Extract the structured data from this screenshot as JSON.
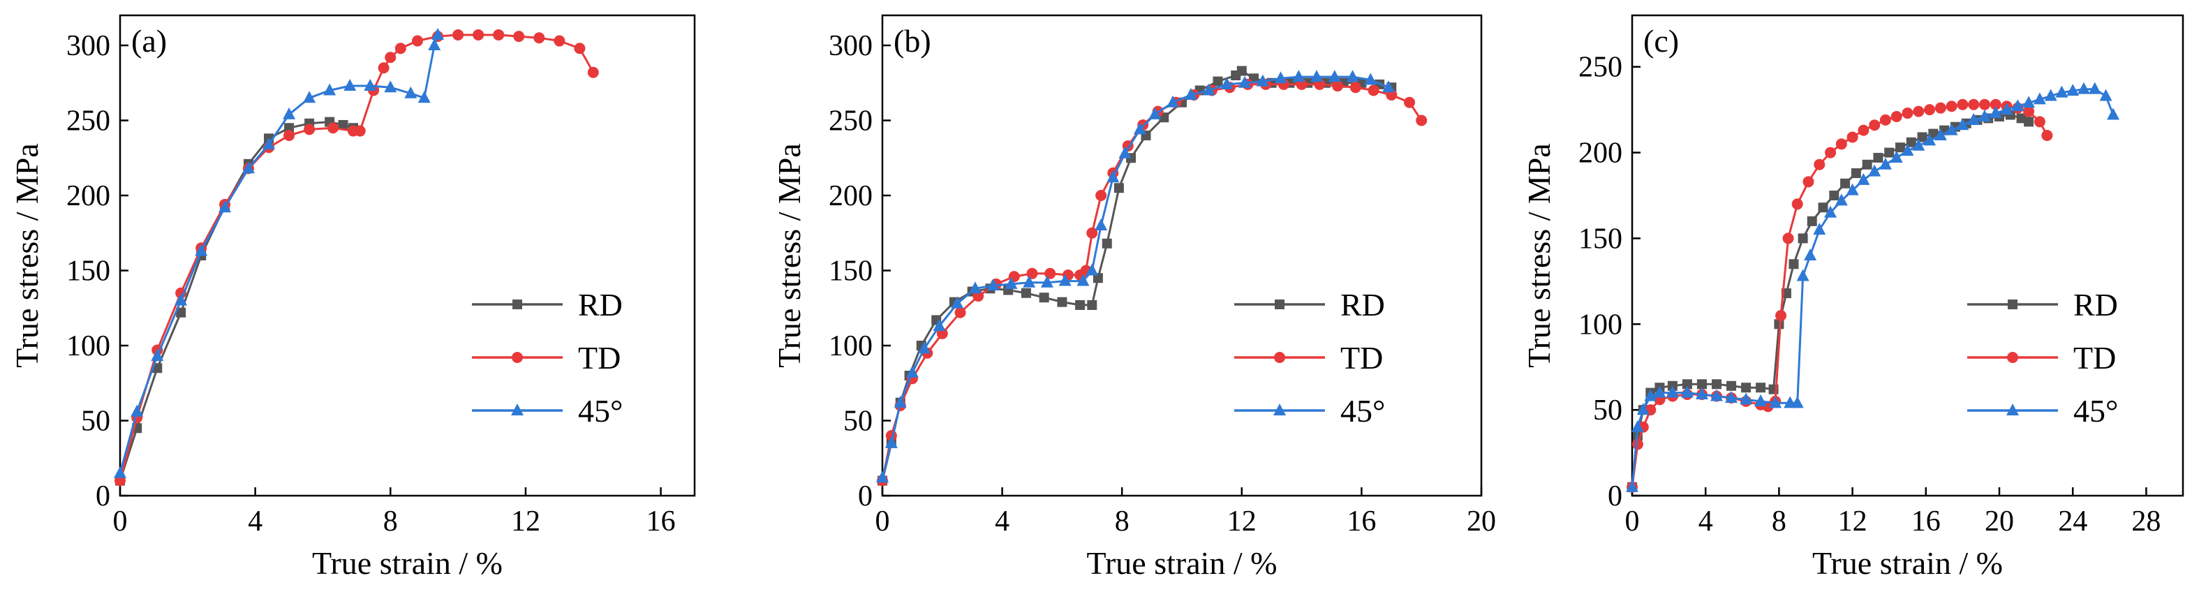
{
  "figure": {
    "description_none": ""
  },
  "chart_data": [
    {
      "type": "line",
      "panel_tag": "(a)",
      "xlabel": "True strain / %",
      "ylabel": "True stress / MPa",
      "xlim": [
        0,
        17
      ],
      "ylim": [
        0,
        320
      ],
      "xticks": [
        0,
        4,
        8,
        12,
        16
      ],
      "yticks": [
        0,
        50,
        100,
        150,
        200,
        250,
        300
      ],
      "legend_position": "lower-right",
      "series": [
        {
          "name": "RD",
          "color": "#555555",
          "marker": "square",
          "x": [
            0,
            0.5,
            1.1,
            1.8,
            2.4,
            3.1,
            3.8,
            4.4,
            5.0,
            5.6,
            6.2,
            6.6,
            6.9
          ],
          "y": [
            10,
            45,
            85,
            122,
            160,
            193,
            221,
            238,
            245,
            248,
            249,
            247,
            245
          ]
        },
        {
          "name": "TD",
          "color": "#e8393a",
          "marker": "circle",
          "x": [
            0,
            0.5,
            1.1,
            1.8,
            2.4,
            3.1,
            3.8,
            4.4,
            5.0,
            5.6,
            6.3,
            6.9,
            7.1,
            7.5,
            7.8,
            8.0,
            8.3,
            8.8,
            9.4,
            10.0,
            10.6,
            11.2,
            11.8,
            12.4,
            13.0,
            13.6,
            14.0
          ],
          "y": [
            10,
            52,
            97,
            135,
            165,
            194,
            218,
            232,
            240,
            244,
            245,
            243,
            243,
            270,
            285,
            292,
            298,
            303,
            306,
            307,
            307,
            307,
            306,
            305,
            303,
            298,
            282
          ],
          "marker_every": 1
        },
        {
          "name": "45°",
          "color": "#2f79d6",
          "marker": "triangle",
          "x": [
            0,
            0.5,
            1.1,
            1.8,
            2.4,
            3.1,
            3.8,
            4.4,
            5.0,
            5.6,
            6.2,
            6.8,
            7.4,
            8.0,
            8.6,
            9.0,
            9.3,
            9.4
          ],
          "y": [
            15,
            56,
            93,
            130,
            163,
            192,
            218,
            234,
            254,
            265,
            270,
            273,
            273,
            272,
            268,
            265,
            300,
            307
          ]
        }
      ]
    },
    {
      "type": "line",
      "panel_tag": "(b)",
      "xlabel": "True strain / %",
      "ylabel": "True stress / MPa",
      "xlim": [
        0,
        20
      ],
      "ylim": [
        0,
        320
      ],
      "xticks": [
        0,
        4,
        8,
        12,
        16,
        20
      ],
      "yticks": [
        0,
        50,
        100,
        150,
        200,
        250,
        300
      ],
      "legend_position": "lower-right",
      "series": [
        {
          "name": "RD",
          "color": "#555555",
          "marker": "square",
          "x": [
            0,
            0.3,
            0.6,
            0.9,
            1.3,
            1.8,
            2.4,
            3.0,
            3.6,
            4.2,
            4.8,
            5.4,
            6.0,
            6.6,
            7.0,
            7.2,
            7.5,
            7.9,
            8.3,
            8.8,
            9.4,
            10.0,
            10.6,
            11.2,
            11.8,
            12.0,
            12.4,
            13.0,
            13.6,
            14.2,
            14.8,
            15.4,
            16.0,
            16.6,
            17.0
          ],
          "y": [
            10,
            35,
            62,
            80,
            100,
            117,
            129,
            136,
            138,
            137,
            135,
            132,
            129,
            127,
            127,
            145,
            168,
            205,
            225,
            240,
            252,
            262,
            270,
            276,
            280,
            283,
            278,
            275,
            275,
            275,
            275,
            275,
            275,
            274,
            272
          ]
        },
        {
          "name": "TD",
          "color": "#e8393a",
          "marker": "circle",
          "x": [
            0,
            0.3,
            0.6,
            1.0,
            1.5,
            2.0,
            2.6,
            3.2,
            3.8,
            4.4,
            5.0,
            5.6,
            6.2,
            6.6,
            6.8,
            7.0,
            7.3,
            7.7,
            8.2,
            8.7,
            9.2,
            9.8,
            10.4,
            11.0,
            11.6,
            12.2,
            12.8,
            13.4,
            14.0,
            14.6,
            15.2,
            15.8,
            16.4,
            17.0,
            17.6,
            18.0
          ],
          "y": [
            10,
            40,
            60,
            78,
            95,
            108,
            122,
            133,
            141,
            146,
            148,
            148,
            147,
            147,
            150,
            175,
            200,
            215,
            233,
            247,
            256,
            262,
            267,
            270,
            272,
            274,
            274,
            274,
            274,
            274,
            273,
            272,
            270,
            267,
            262,
            250
          ]
        },
        {
          "name": "45°",
          "color": "#2f79d6",
          "marker": "triangle",
          "x": [
            0,
            0.3,
            0.6,
            1.0,
            1.4,
            1.9,
            2.5,
            3.1,
            3.7,
            4.3,
            4.9,
            5.5,
            6.1,
            6.7,
            7.0,
            7.3,
            7.7,
            8.1,
            8.6,
            9.1,
            9.7,
            10.3,
            10.9,
            11.5,
            12.1,
            12.7,
            13.3,
            13.9,
            14.5,
            15.1,
            15.7,
            16.3,
            16.9
          ],
          "y": [
            12,
            35,
            62,
            82,
            98,
            113,
            128,
            138,
            140,
            141,
            142,
            142,
            143,
            143,
            150,
            180,
            212,
            228,
            244,
            254,
            262,
            267,
            270,
            274,
            275,
            276,
            278,
            279,
            279,
            279,
            279,
            277,
            272
          ]
        }
      ]
    },
    {
      "type": "line",
      "panel_tag": "(c)",
      "xlabel": "True strain / %",
      "ylabel": "True stress / MPa",
      "xlim": [
        0,
        30
      ],
      "ylim": [
        0,
        280
      ],
      "xticks": [
        0,
        4,
        8,
        12,
        16,
        20,
        24,
        28
      ],
      "yticks": [
        0,
        50,
        100,
        150,
        200,
        250
      ],
      "legend_position": "lower-right",
      "series": [
        {
          "name": "RD",
          "color": "#555555",
          "marker": "square",
          "x": [
            0,
            0.3,
            0.6,
            1.0,
            1.5,
            2.2,
            3.0,
            3.8,
            4.6,
            5.4,
            6.2,
            7.0,
            7.7,
            8.0,
            8.4,
            8.8,
            9.3,
            9.8,
            10.4,
            11.0,
            11.6,
            12.2,
            12.8,
            13.4,
            14.0,
            14.6,
            15.2,
            15.8,
            16.4,
            17.0,
            17.6,
            18.2,
            18.8,
            19.4,
            20.0,
            20.6,
            21.2,
            21.6
          ],
          "y": [
            5,
            35,
            50,
            60,
            63,
            64,
            65,
            65,
            65,
            64,
            63,
            63,
            62,
            100,
            118,
            135,
            150,
            160,
            168,
            175,
            182,
            188,
            193,
            197,
            200,
            203,
            206,
            209,
            211,
            213,
            215,
            217,
            219,
            220,
            221,
            222,
            220,
            218
          ]
        },
        {
          "name": "TD",
          "color": "#e8393a",
          "marker": "circle",
          "x": [
            0,
            0.3,
            0.6,
            1.0,
            1.5,
            2.2,
            3.0,
            3.8,
            4.6,
            5.4,
            6.2,
            7.0,
            7.4,
            7.8,
            8.1,
            8.5,
            9.0,
            9.6,
            10.2,
            10.8,
            11.4,
            12.0,
            12.6,
            13.2,
            13.8,
            14.4,
            15.0,
            15.6,
            16.2,
            16.8,
            17.4,
            18.0,
            18.6,
            19.2,
            19.8,
            20.4,
            21.0,
            21.6,
            22.2,
            22.6
          ],
          "y": [
            5,
            30,
            40,
            50,
            56,
            58,
            59,
            59,
            58,
            57,
            55,
            53,
            52,
            55,
            105,
            150,
            170,
            183,
            193,
            200,
            205,
            209,
            213,
            216,
            219,
            221,
            223,
            224,
            225,
            226,
            227,
            228,
            228,
            228,
            228,
            227,
            226,
            224,
            218,
            210
          ]
        },
        {
          "name": "45°",
          "color": "#2f79d6",
          "marker": "triangle",
          "x": [
            0,
            0.3,
            0.6,
            1.0,
            1.5,
            2.2,
            3.0,
            3.8,
            4.6,
            5.4,
            6.2,
            7.0,
            7.8,
            8.6,
            9.0,
            9.3,
            9.7,
            10.2,
            10.8,
            11.4,
            12.0,
            12.6,
            13.2,
            13.8,
            14.4,
            15.0,
            15.6,
            16.2,
            16.8,
            17.4,
            18.0,
            18.6,
            19.2,
            19.8,
            20.4,
            21.0,
            21.6,
            22.2,
            22.8,
            23.4,
            24.0,
            24.6,
            25.2,
            25.8,
            26.2
          ],
          "y": [
            5,
            40,
            50,
            58,
            60,
            60,
            60,
            59,
            58,
            57,
            56,
            55,
            54,
            54,
            54,
            128,
            140,
            155,
            165,
            172,
            178,
            184,
            189,
            193,
            197,
            201,
            204,
            207,
            210,
            213,
            216,
            219,
            221,
            223,
            225,
            227,
            229,
            231,
            233,
            235,
            236,
            237,
            237,
            233,
            222
          ]
        }
      ]
    }
  ]
}
